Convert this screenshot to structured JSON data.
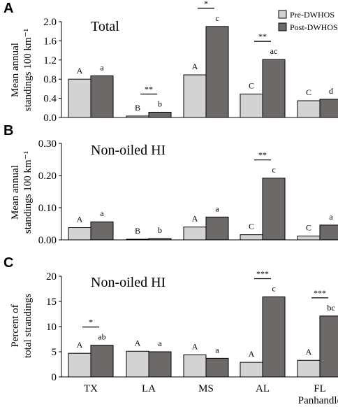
{
  "colors": {
    "pre": "#d3d3d3",
    "post": "#6e6969",
    "stroke": "#000000"
  },
  "legend": {
    "pre": "Pre-DWHOS",
    "post": "Post-DWHOS"
  },
  "chart_data": [
    {
      "type": "bar",
      "panel": "A",
      "title": "Total",
      "ylabel": [
        "Mean annual",
        "standings 100 km⁻¹"
      ],
      "ylim": [
        0,
        2.0
      ],
      "yticks": [
        "0.0",
        "0.4",
        "0.8",
        "1.2",
        "1.6",
        "2.0"
      ],
      "categories": [
        "TX",
        "LA",
        "MS",
        "AL",
        "FL"
      ],
      "series": [
        {
          "name": "Pre-DWHOS",
          "values": [
            0.8,
            0.03,
            0.89,
            0.49,
            0.35
          ],
          "labels": [
            "A",
            "B",
            "A",
            "C",
            "C"
          ]
        },
        {
          "name": "Post-DWHOS",
          "values": [
            0.87,
            0.11,
            1.9,
            1.21,
            0.38
          ],
          "labels": [
            "a",
            "b",
            "c",
            "ac",
            "d"
          ]
        }
      ],
      "significance": [
        {
          "category": "LA",
          "text": "**"
        },
        {
          "category": "MS",
          "text": "*"
        },
        {
          "category": "AL",
          "text": "**"
        }
      ],
      "grid": false,
      "legend_position": "top-right"
    },
    {
      "type": "bar",
      "panel": "B",
      "title": "Non-oiled HI",
      "ylabel": [
        "Mean annual",
        "standings 100 km⁻¹"
      ],
      "ylim": [
        0,
        0.3
      ],
      "yticks": [
        "0.00",
        "0.10",
        "0.20",
        "0.30"
      ],
      "categories": [
        "TX",
        "LA",
        "MS",
        "AL",
        "FL"
      ],
      "series": [
        {
          "name": "Pre-DWHOS",
          "values": [
            0.038,
            0.002,
            0.04,
            0.016,
            0.012
          ],
          "labels": [
            "A",
            "B",
            "A",
            "C",
            "C"
          ]
        },
        {
          "name": "Post-DWHOS",
          "values": [
            0.056,
            0.004,
            0.071,
            0.192,
            0.046
          ],
          "labels": [
            "a",
            "b",
            "a",
            "c",
            "a"
          ]
        }
      ],
      "significance": [
        {
          "category": "AL",
          "text": "**"
        }
      ],
      "grid": false
    },
    {
      "type": "bar",
      "panel": "C",
      "title": "Non-oiled HI",
      "ylabel": [
        "Percent of",
        "total strandings"
      ],
      "ylim": [
        0,
        20
      ],
      "yticks": [
        "0",
        "5",
        "10",
        "15",
        "20"
      ],
      "categories": [
        "TX",
        "LA",
        "MS",
        "AL",
        "FL"
      ],
      "category_labels": [
        "TX",
        "LA",
        "MS",
        "AL",
        "FL Panhandle"
      ],
      "series": [
        {
          "name": "Pre-DWHOS",
          "values": [
            4.7,
            5.1,
            4.4,
            2.9,
            3.3
          ],
          "labels": [
            "A",
            "A",
            "A",
            "A",
            "A"
          ]
        },
        {
          "name": "Post-DWHOS",
          "values": [
            6.3,
            5.0,
            3.7,
            15.9,
            12.1
          ],
          "labels": [
            "ab",
            "a",
            "a",
            "c",
            "bc"
          ]
        }
      ],
      "significance": [
        {
          "category": "TX",
          "text": "*"
        },
        {
          "category": "AL",
          "text": "***"
        },
        {
          "category": "FL",
          "text": "***"
        }
      ],
      "grid": false
    }
  ]
}
